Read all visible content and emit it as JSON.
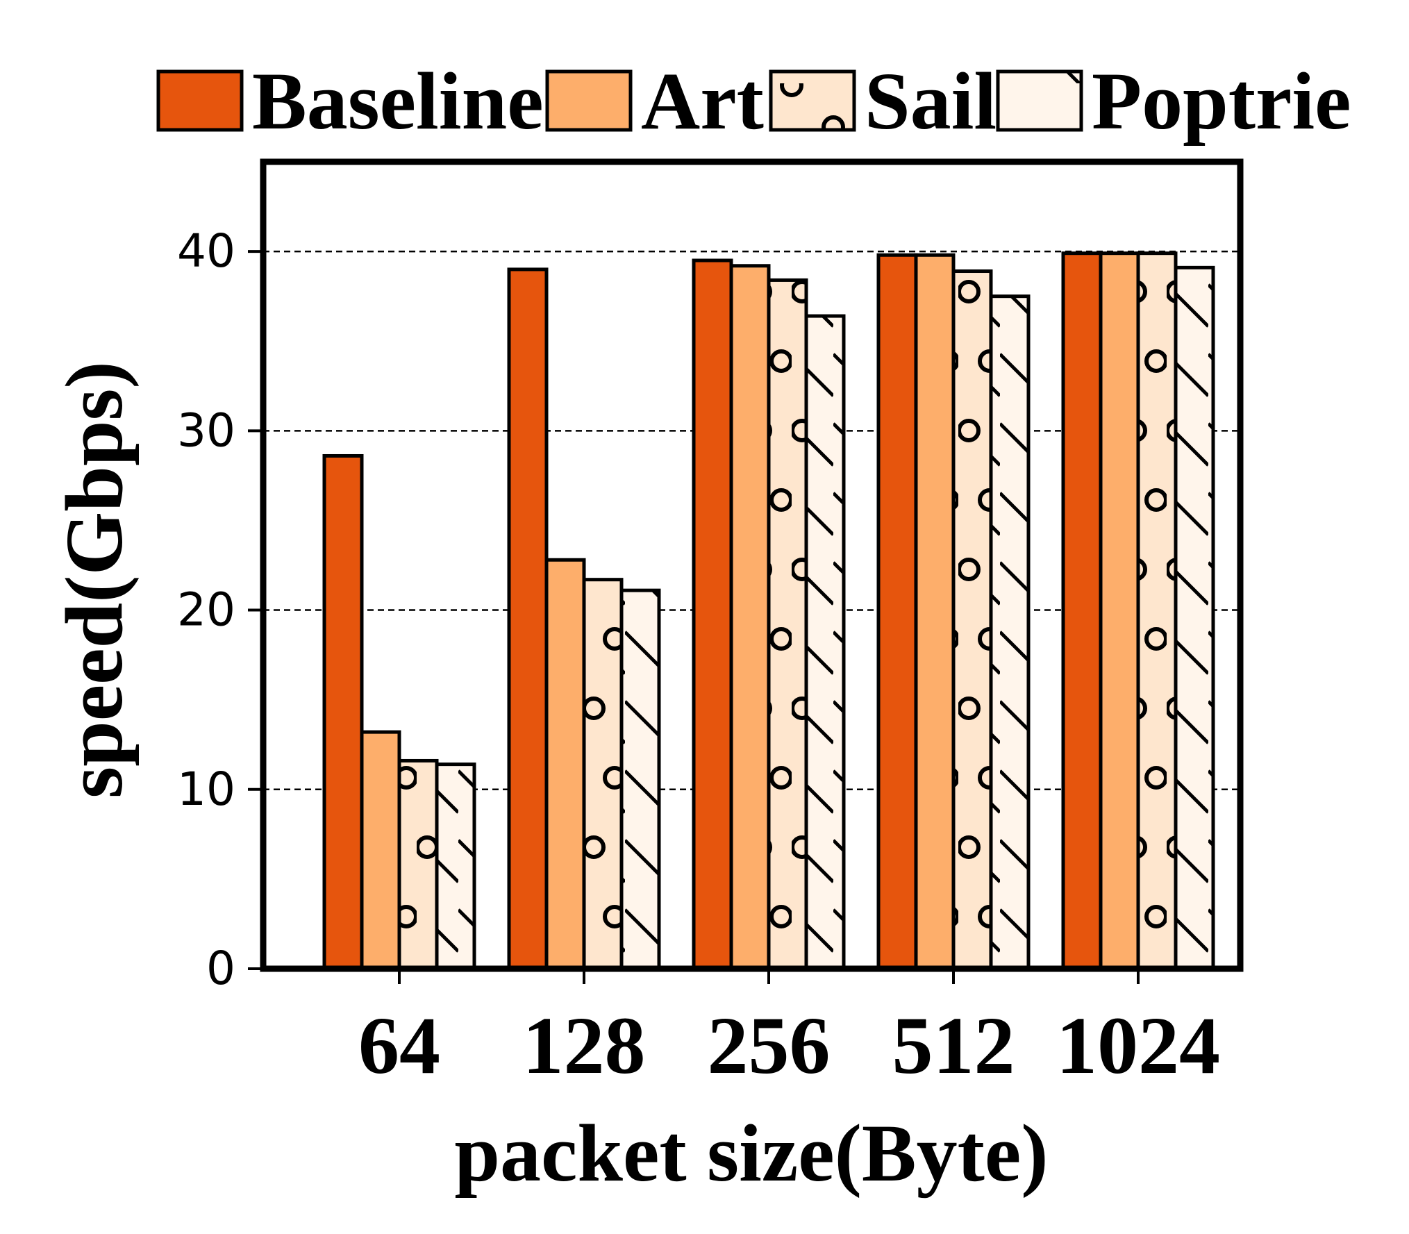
{
  "chart_data": {
    "type": "bar",
    "xlabel": "packet size(Byte)",
    "ylabel": "speed(Gbps)",
    "categories": [
      "64",
      "128",
      "256",
      "512",
      "1024"
    ],
    "yticks": [
      "0",
      "10",
      "20",
      "30",
      "40"
    ],
    "ylim": [
      0,
      45
    ],
    "grid": "horizontal dashed",
    "legend_position": "top",
    "series": [
      {
        "name": "Baseline",
        "values": [
          28.6,
          39.0,
          39.5,
          39.8,
          39.9
        ],
        "color": "#e6550d",
        "pattern": "none"
      },
      {
        "name": "Art",
        "values": [
          13.2,
          22.8,
          39.2,
          39.8,
          39.9
        ],
        "color": "#fdae6b",
        "pattern": "none"
      },
      {
        "name": "Sail",
        "values": [
          11.6,
          21.7,
          38.4,
          38.9,
          39.9
        ],
        "color": "#fee6ce",
        "pattern": "circles"
      },
      {
        "name": "Poptrie",
        "values": [
          11.4,
          21.1,
          36.4,
          37.5,
          39.1
        ],
        "color": "#fff5eb",
        "pattern": "diagonal"
      }
    ]
  }
}
